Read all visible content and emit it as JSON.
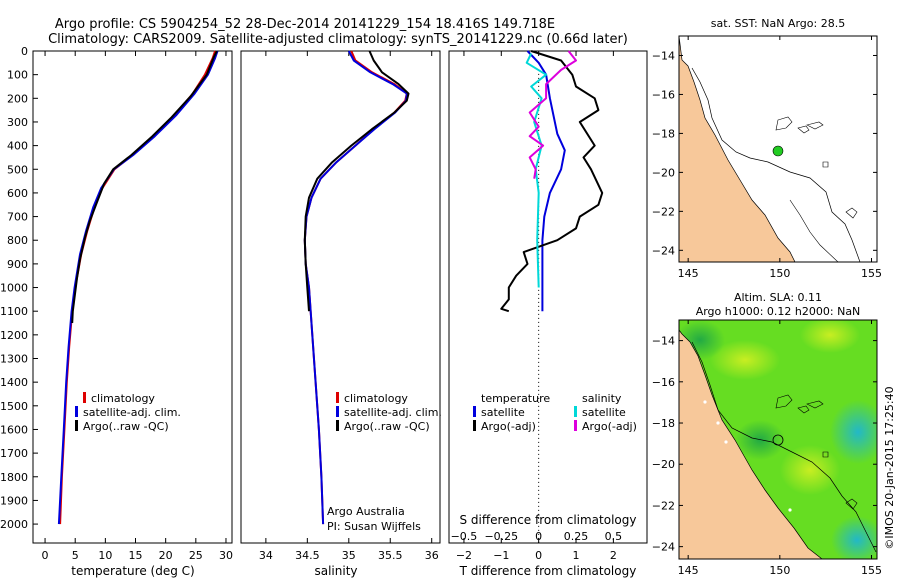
{
  "header": {
    "line1": "Argo profile: CS 5904254_52 28-Dec-2014 20141229_154 18.416S 149.718E",
    "line2": "Climatology: CARS2009. Satellite-adjusted climatology: synTS_20141229.nc (0.66d later)"
  },
  "side_label": "©IMOS 20-Jan-2015 17:25:40",
  "chart_data": [
    {
      "id": "temperature",
      "type": "line",
      "xlabel": "temperature (deg C)",
      "ylabel": "",
      "xlim": [
        -2,
        31
      ],
      "ylim": [
        2080,
        0
      ],
      "xticks": [
        0,
        5,
        10,
        15,
        20,
        25,
        30
      ],
      "xtick_labels": [
        "0",
        "5",
        "10",
        "15",
        "20",
        "25",
        "30"
      ],
      "yticks": [
        0,
        100,
        200,
        300,
        400,
        500,
        600,
        700,
        800,
        900,
        1000,
        1100,
        1200,
        1300,
        1400,
        1500,
        1600,
        1700,
        1800,
        1900,
        2000
      ],
      "ytick_labels": [
        "0",
        "100",
        "200",
        "300",
        "400",
        "500",
        "600",
        "700",
        "800",
        "900",
        "1000",
        "1100",
        "1200",
        "1300",
        "1400",
        "1500",
        "1600",
        "1700",
        "1800",
        "1900",
        "2000"
      ],
      "legend": [
        "climatology",
        "satellite-adj. clim.",
        "Argo(..raw -QC)"
      ],
      "series": [
        {
          "name": "climatology",
          "color": "#dd0000",
          "points": [
            [
              28.2,
              0
            ],
            [
              27.8,
              30
            ],
            [
              26.5,
              100
            ],
            [
              24.5,
              180
            ],
            [
              21.5,
              270
            ],
            [
              18.0,
              360
            ],
            [
              14.5,
              440
            ],
            [
              11.5,
              500
            ],
            [
              9.5,
              580
            ],
            [
              8.2,
              660
            ],
            [
              7.0,
              760
            ],
            [
              6.0,
              860
            ],
            [
              5.0,
              1000
            ],
            [
              4.5,
              1100
            ],
            [
              4.0,
              1250
            ],
            [
              3.6,
              1400
            ],
            [
              3.2,
              1600
            ],
            [
              2.8,
              1800
            ],
            [
              2.5,
              2000
            ]
          ]
        },
        {
          "name": "satellite-adj. clim.",
          "color": "#0000dd",
          "points": [
            [
              28.6,
              0
            ],
            [
              28.2,
              30
            ],
            [
              27.0,
              100
            ],
            [
              24.8,
              180
            ],
            [
              21.8,
              270
            ],
            [
              18.2,
              360
            ],
            [
              14.6,
              440
            ],
            [
              11.4,
              500
            ],
            [
              9.3,
              580
            ],
            [
              8.0,
              660
            ],
            [
              6.8,
              760
            ],
            [
              5.8,
              860
            ],
            [
              4.9,
              1000
            ],
            [
              4.4,
              1100
            ],
            [
              3.9,
              1250
            ],
            [
              3.5,
              1400
            ],
            [
              3.1,
              1600
            ],
            [
              2.7,
              1800
            ],
            [
              2.3,
              2000
            ]
          ]
        },
        {
          "name": "Argo(..raw -QC)",
          "color": "#000000",
          "points": [
            [
              28.5,
              0
            ],
            [
              28.0,
              25
            ],
            [
              26.8,
              100
            ],
            [
              24.2,
              190
            ],
            [
              21.0,
              280
            ],
            [
              17.8,
              360
            ],
            [
              14.3,
              440
            ],
            [
              11.3,
              500
            ],
            [
              9.8,
              560
            ],
            [
              8.6,
              640
            ],
            [
              7.4,
              720
            ],
            [
              6.6,
              790
            ],
            [
              5.8,
              880
            ],
            [
              5.3,
              960
            ],
            [
              4.9,
              1040
            ],
            [
              4.6,
              1100
            ],
            [
              4.5,
              1150
            ]
          ]
        }
      ]
    },
    {
      "id": "salinity",
      "type": "line",
      "xlabel": "salinity",
      "ylabel": "",
      "xlim": [
        33.7,
        36.1
      ],
      "ylim": [
        2080,
        0
      ],
      "xticks": [
        34,
        34.5,
        35,
        35.5,
        36
      ],
      "xtick_labels": [
        "34",
        "34.5",
        "35",
        "35.5",
        "36"
      ],
      "legend": [
        "climatology",
        "satellite-adj. clim.",
        "Argo(..raw -QC)"
      ],
      "annotation": [
        "Argo Australia",
        "PI: Susan Wijffels"
      ],
      "series": [
        {
          "name": "climatology",
          "color": "#dd0000",
          "points": [
            [
              35.03,
              0
            ],
            [
              35.08,
              40
            ],
            [
              35.28,
              90
            ],
            [
              35.55,
              140
            ],
            [
              35.7,
              180
            ],
            [
              35.68,
              210
            ],
            [
              35.55,
              260
            ],
            [
              35.3,
              330
            ],
            [
              35.08,
              400
            ],
            [
              34.85,
              470
            ],
            [
              34.66,
              540
            ],
            [
              34.55,
              620
            ],
            [
              34.49,
              700
            ],
            [
              34.47,
              800
            ],
            [
              34.48,
              900
            ],
            [
              34.52,
              1000
            ],
            [
              34.56,
              1200
            ],
            [
              34.6,
              1400
            ],
            [
              34.64,
              1600
            ],
            [
              34.67,
              1800
            ],
            [
              34.69,
              2000
            ]
          ]
        },
        {
          "name": "satellite-adj. clim.",
          "color": "#0000dd",
          "points": [
            [
              35.0,
              0
            ],
            [
              35.06,
              40
            ],
            [
              35.26,
              90
            ],
            [
              35.53,
              140
            ],
            [
              35.7,
              180
            ],
            [
              35.69,
              210
            ],
            [
              35.56,
              260
            ],
            [
              35.31,
              330
            ],
            [
              35.08,
              400
            ],
            [
              34.85,
              470
            ],
            [
              34.66,
              540
            ],
            [
              34.55,
              620
            ],
            [
              34.49,
              700
            ],
            [
              34.47,
              800
            ],
            [
              34.48,
              900
            ],
            [
              34.52,
              1000
            ],
            [
              34.56,
              1200
            ],
            [
              34.6,
              1400
            ],
            [
              34.64,
              1600
            ],
            [
              34.67,
              1800
            ],
            [
              34.69,
              2000
            ]
          ]
        },
        {
          "name": "Argo(..raw -QC)",
          "color": "#000000",
          "points": [
            [
              35.25,
              0
            ],
            [
              35.3,
              40
            ],
            [
              35.4,
              90
            ],
            [
              35.6,
              140
            ],
            [
              35.72,
              180
            ],
            [
              35.7,
              210
            ],
            [
              35.55,
              260
            ],
            [
              35.28,
              330
            ],
            [
              35.03,
              400
            ],
            [
              34.8,
              470
            ],
            [
              34.62,
              540
            ],
            [
              34.52,
              620
            ],
            [
              34.48,
              700
            ],
            [
              34.47,
              800
            ],
            [
              34.48,
              900
            ],
            [
              34.5,
              1000
            ],
            [
              34.52,
              1100
            ]
          ]
        }
      ]
    },
    {
      "id": "difference",
      "type": "line",
      "xlabel": "T difference from climatology",
      "xlabel_top": "S difference from climatology",
      "xlim": [
        -2.4,
        2.9
      ],
      "ylim": [
        2080,
        0
      ],
      "xticks": [
        -2,
        -1,
        0,
        1,
        2
      ],
      "xtick_labels": [
        "−2",
        "−1",
        "0",
        "1",
        "2"
      ],
      "s_ticks": [
        -0.5,
        -0.25,
        0,
        0.25,
        0.5
      ],
      "s_tick_labels": [
        "−0.5",
        "−0.25",
        "0",
        "0.25",
        "0.5"
      ],
      "legend_left_title": "temperature",
      "legend_left": [
        "satellite",
        "Argo(-adj)"
      ],
      "legend_right_title": "salinity",
      "legend_right": [
        "satellite",
        "Argo(-adj)"
      ],
      "series": [
        {
          "name": "temperature satellite",
          "color": "#0000dd",
          "points": [
            [
              -0.3,
              0
            ],
            [
              0.0,
              50
            ],
            [
              0.2,
              100
            ],
            [
              0.3,
              200
            ],
            [
              0.5,
              350
            ],
            [
              0.7,
              420
            ],
            [
              0.6,
              500
            ],
            [
              0.3,
              600
            ],
            [
              0.15,
              700
            ],
            [
              0.1,
              800
            ],
            [
              0.1,
              1000
            ],
            [
              0.1,
              1100
            ]
          ]
        },
        {
          "name": "temperature Argo(-adj)",
          "color": "#000000",
          "points": [
            [
              -0.2,
              0
            ],
            [
              0.6,
              40
            ],
            [
              0.9,
              100
            ],
            [
              1.0,
              150
            ],
            [
              1.5,
              200
            ],
            [
              1.6,
              250
            ],
            [
              1.1,
              300
            ],
            [
              1.5,
              400
            ],
            [
              1.2,
              450
            ],
            [
              1.4,
              500
            ],
            [
              1.7,
              600
            ],
            [
              1.6,
              650
            ],
            [
              1.1,
              700
            ],
            [
              1.0,
              750
            ],
            [
              0.5,
              800
            ],
            [
              -0.4,
              850
            ],
            [
              -0.3,
              900
            ],
            [
              -0.6,
              950
            ],
            [
              -0.8,
              1000
            ],
            [
              -0.8,
              1050
            ],
            [
              -1.0,
              1090
            ],
            [
              -0.8,
              1100
            ]
          ]
        },
        {
          "name": "salinity satellite",
          "color": "#00d8d8",
          "points": [
            [
              -0.05,
              10
            ],
            [
              -0.08,
              50
            ],
            [
              0.05,
              100
            ],
            [
              -0.05,
              150
            ],
            [
              0.02,
              200
            ],
            [
              -0.03,
              300
            ],
            [
              0.02,
              400
            ],
            [
              -0.02,
              500
            ],
            [
              0.0,
              600
            ],
            [
              -0.01,
              800
            ],
            [
              0.0,
              1000
            ]
          ]
        },
        {
          "name": "salinity Argo(-adj)",
          "color": "#dd00dd",
          "points": [
            [
              0.2,
              0
            ],
            [
              0.25,
              40
            ],
            [
              0.15,
              80
            ],
            [
              0.05,
              140
            ],
            [
              0.05,
              200
            ],
            [
              -0.06,
              260
            ],
            [
              0.0,
              320
            ],
            [
              -0.06,
              360
            ],
            [
              0.03,
              400
            ],
            [
              -0.06,
              450
            ],
            [
              -0.02,
              500
            ],
            [
              -0.03,
              540
            ]
          ]
        }
      ]
    },
    {
      "id": "sst_map",
      "type": "heatmap",
      "title": "sat. SST: NaN Argo: 28.5",
      "xlim": [
        144.5,
        155.3
      ],
      "ylim": [
        -24.6,
        -13.0
      ],
      "xticks": [
        145,
        150,
        155
      ],
      "xtick_labels": [
        "145",
        "150",
        "155"
      ],
      "yticks": [
        -14,
        -16,
        -18,
        -20,
        -22,
        -24
      ],
      "ytick_labels": [
        "−14",
        "−16",
        "−18",
        "−20",
        "−22",
        "−24"
      ],
      "float_position": [
        149.718,
        -18.416
      ],
      "land_color": "#f7c89a",
      "float_color": "#22cc22"
    },
    {
      "id": "sla_map",
      "type": "heatmap",
      "title": "Altim. SLA: 0.11",
      "subtitle": "Argo h1000: 0.12 h2000: NaN",
      "xlim": [
        144.5,
        155.3
      ],
      "ylim": [
        -24.6,
        -13.0
      ],
      "xticks": [
        145,
        150,
        155
      ],
      "xtick_labels": [
        "145",
        "150",
        "155"
      ],
      "yticks": [
        -14,
        -16,
        -18,
        -20,
        -22,
        -24
      ],
      "ytick_labels": [
        "−14",
        "−16",
        "−18",
        "−20",
        "−22",
        "−24"
      ],
      "float_position": [
        149.718,
        -18.416
      ],
      "land_color": "#f7c89a",
      "sea_color": "#66dd22"
    }
  ]
}
